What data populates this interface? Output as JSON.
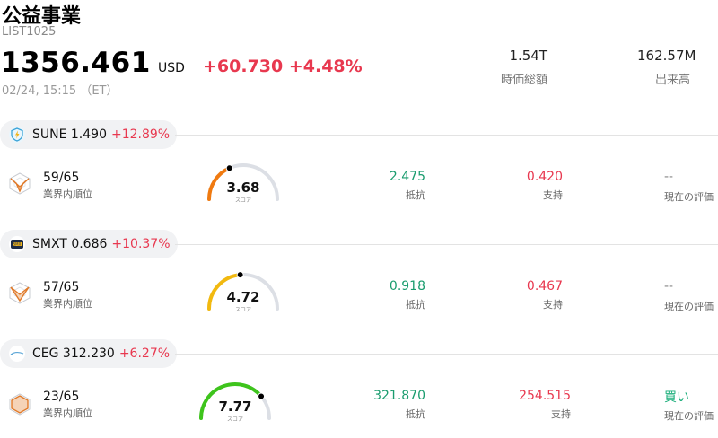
{
  "header": {
    "title": "公益事業",
    "code": "LIST1025",
    "price": "1356.461",
    "currency": "USD",
    "change": "+60.730 +4.48%",
    "datetime": "02/24, 15:15 （ET）",
    "market_cap_value": "1.54T",
    "market_cap_label": "時価総額",
    "volume_value": "162.57M",
    "volume_label": "出来高"
  },
  "labels": {
    "rank": "業界内順位",
    "score": "スコア",
    "resistance": "抵抗",
    "support": "支持",
    "rating": "現在の評価"
  },
  "stocks": [
    {
      "name": "SUNE 1.490",
      "pct": "+12.89%",
      "rank": "59/65",
      "score": "3.68",
      "score_value": 3.68,
      "gauge_color": "#f07a10",
      "resistance": "2.475",
      "support": "0.420",
      "rating": "--",
      "logo_icon": "lightning-shield-icon"
    },
    {
      "name": "SMXT 0.686",
      "pct": "+10.37%",
      "rank": "57/65",
      "score": "4.72",
      "score_value": 4.72,
      "gauge_color": "#f2b90f",
      "resistance": "0.918",
      "support": "0.467",
      "rating": "--",
      "logo_icon": "smxt-logo-icon"
    },
    {
      "name": "CEG 312.230",
      "pct": "+6.27%",
      "rank": "23/65",
      "score": "7.77",
      "score_value": 7.77,
      "gauge_color": "#3ec41c",
      "resistance": "321.870",
      "support": "254.515",
      "rating": "買い",
      "logo_icon": "constellation-logo-icon"
    }
  ]
}
